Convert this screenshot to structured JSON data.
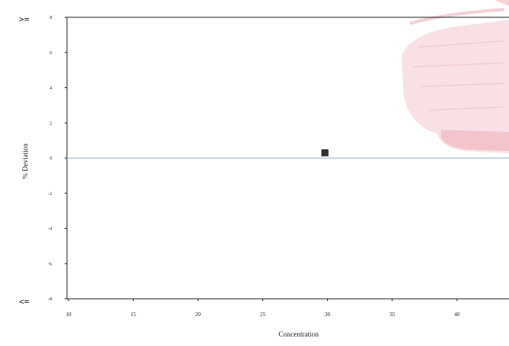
{
  "chart_data": {
    "type": "scatter",
    "xlabel": "Concentration",
    "ylabel": "% Deviation",
    "xlim": [
      10,
      45
    ],
    "ylim": [
      -8,
      8
    ],
    "x_ticks": [
      "10",
      "15",
      "20",
      "25",
      "30",
      "35",
      "40"
    ],
    "y_ticks": [
      "8",
      "6",
      "4",
      "2",
      "0",
      "-2",
      "-4",
      "-6",
      "-8"
    ],
    "upper_bound_label": ">=",
    "lower_bound_label": "<=",
    "reference_line_y": 0,
    "points": [
      {
        "x": 29.8,
        "y": 0.3
      }
    ],
    "colors": {
      "marker": "#333333",
      "reference_line": "#8fb3c9",
      "axis": "#222222",
      "stamp": "#d2566a"
    }
  }
}
